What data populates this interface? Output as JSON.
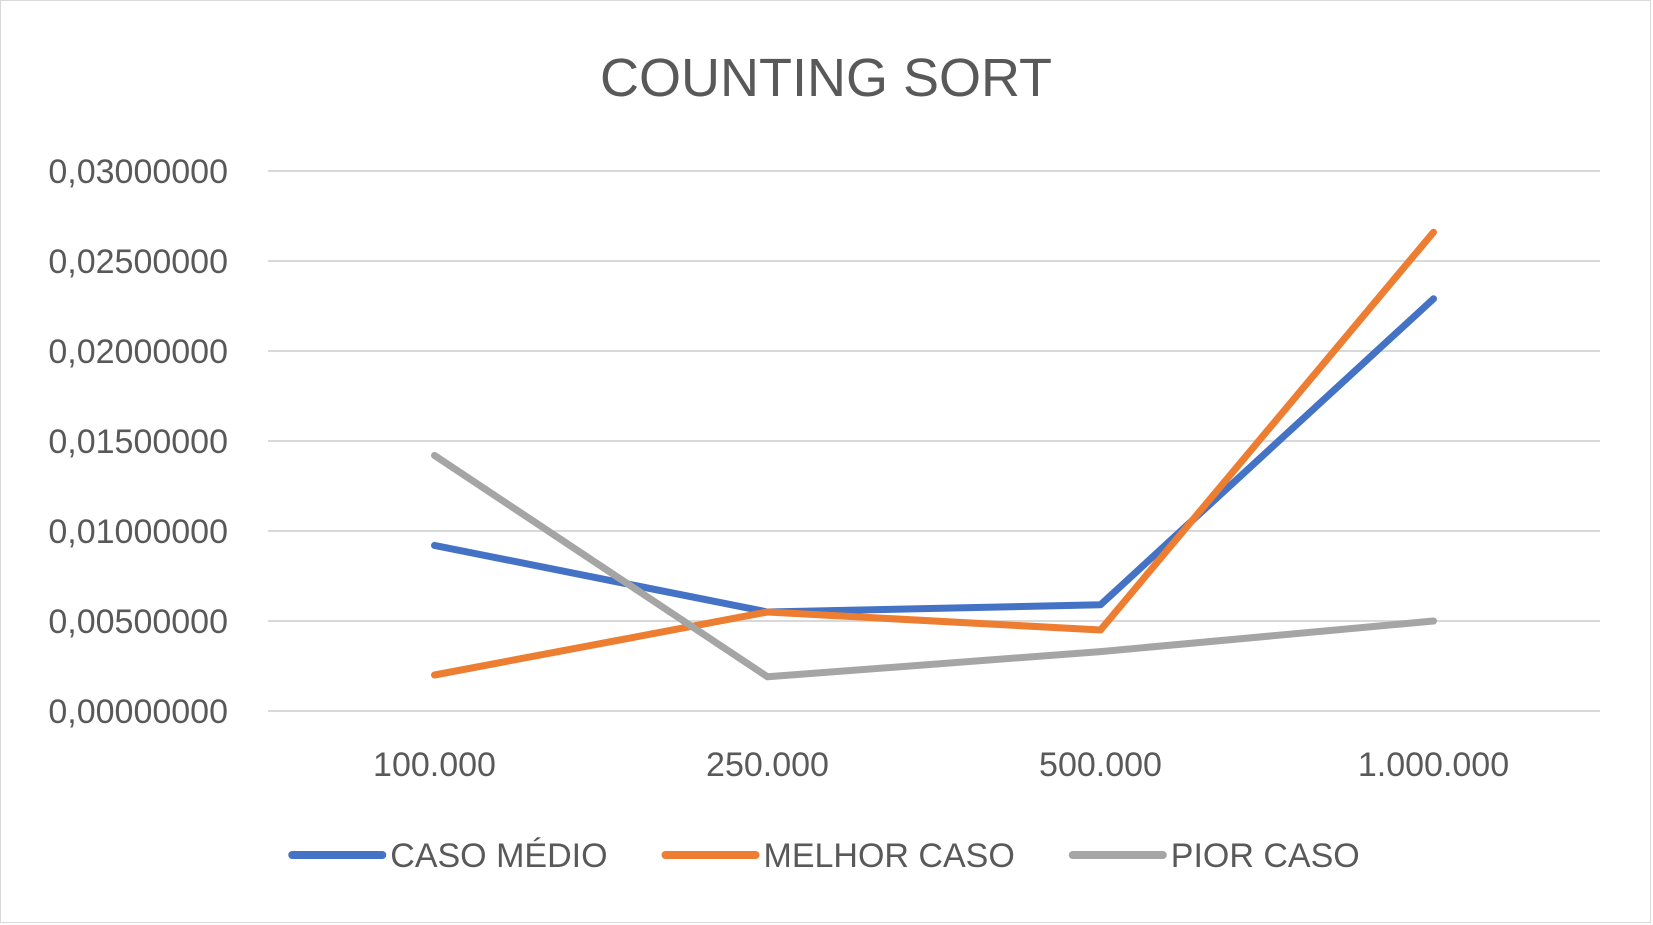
{
  "chart_data": {
    "type": "line",
    "title": "COUNTING SORT",
    "xlabel": "",
    "ylabel": "",
    "categories": [
      "100.000",
      "250.000",
      "500.000",
      "1.000.000"
    ],
    "ylim": [
      0,
      0.03
    ],
    "yticks": [
      0,
      0.005,
      0.01,
      0.015,
      0.02,
      0.025,
      0.03
    ],
    "ytick_labels": [
      "0,00000000",
      "0,00500000",
      "0,01000000",
      "0,01500000",
      "0,02000000",
      "0,02500000",
      "0,03000000"
    ],
    "grid": true,
    "legend_position": "bottom",
    "series": [
      {
        "name": "CASO MÉDIO",
        "color": "#4472C4",
        "values": [
          0.0092,
          0.0055,
          0.0059,
          0.0229
        ]
      },
      {
        "name": "MELHOR CASO",
        "color": "#ED7D31",
        "values": [
          0.002,
          0.0055,
          0.0045,
          0.0266
        ]
      },
      {
        "name": "PIOR CASO",
        "color": "#A5A5A5",
        "values": [
          0.0142,
          0.0019,
          0.0033,
          0.005
        ]
      }
    ]
  }
}
